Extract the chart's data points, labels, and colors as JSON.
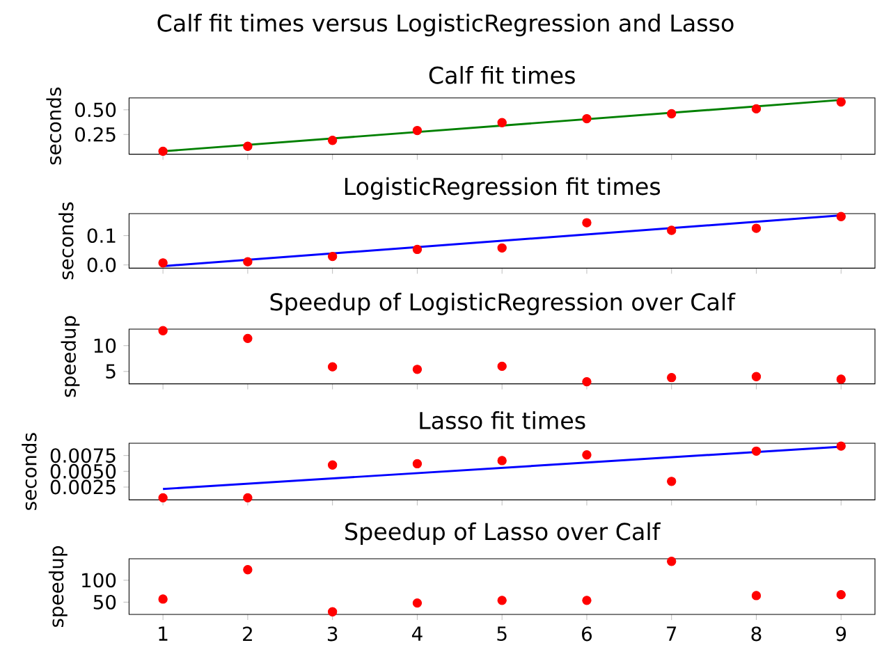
{
  "chart_data": [
    {
      "type": "scatter",
      "title": "Calf fit times",
      "ylabel": "seconds",
      "annotations": [
        "Calf fit times versus LogisticRegression and Lasso"
      ],
      "tick_labels": "y",
      "xlim": [
        0.6,
        9.4
      ],
      "xticks": [
        1,
        2,
        3,
        4,
        5,
        6,
        7,
        8,
        9
      ],
      "ylim": [
        0.05,
        0.62
      ],
      "yticks": [
        {
          "value": 0.25,
          "label": "0.25"
        },
        {
          "value": 0.5,
          "label": "0.50"
        }
      ],
      "series": [
        {
          "type": "line",
          "color": "#008000",
          "x": [
            1,
            9
          ],
          "values": [
            0.08,
            0.6
          ],
          "marker": "none"
        },
        {
          "color": "#ff0000",
          "x": [
            1,
            2,
            3,
            4,
            5,
            6,
            7,
            8,
            9
          ],
          "values": [
            0.08,
            0.13,
            0.19,
            0.29,
            0.37,
            0.41,
            0.46,
            0.51,
            0.58
          ],
          "marker": "circle"
        }
      ]
    },
    {
      "type": "scatter",
      "title": "LogisticRegression fit times",
      "ylabel": "seconds",
      "tick_labels": "y",
      "xlim": [
        0.6,
        9.4
      ],
      "xticks": [
        1,
        2,
        3,
        4,
        5,
        6,
        7,
        8,
        9
      ],
      "ylim": [
        -0.011,
        0.175
      ],
      "yticks": [
        {
          "value": 0,
          "label": "0.0"
        },
        {
          "value": 0.1,
          "label": "0.1"
        }
      ],
      "series": [
        {
          "type": "line",
          "color": "#0000ff",
          "x": [
            1,
            9
          ],
          "values": [
            -0.004,
            0.169
          ],
          "marker": "none"
        },
        {
          "color": "#ff0000",
          "x": [
            1,
            2,
            3,
            4,
            5,
            6,
            7,
            8,
            9
          ],
          "values": [
            0.007,
            0.011,
            0.029,
            0.053,
            0.058,
            0.144,
            0.118,
            0.125,
            0.165
          ],
          "marker": "circle"
        }
      ]
    },
    {
      "type": "scatter",
      "title": "Speedup of LogisticRegression over Calf",
      "ylabel": "speedup",
      "tick_labels": "y",
      "xlim": [
        0.6,
        9.4
      ],
      "xticks": [
        1,
        2,
        3,
        4,
        5,
        6,
        7,
        8,
        9
      ],
      "ylim": [
        2.6,
        13.2
      ],
      "yticks": [
        5,
        10
      ],
      "series": [
        {
          "color": "#ff0000",
          "x": [
            1,
            2,
            3,
            4,
            5,
            6,
            7,
            8,
            9
          ],
          "values": [
            12.9,
            11.4,
            5.9,
            5.4,
            6.0,
            3.0,
            3.8,
            4.0,
            3.5
          ],
          "marker": "circle"
        }
      ]
    },
    {
      "type": "scatter",
      "title": "Lasso fit times",
      "ylabel": "seconds",
      "tick_labels": "y",
      "xlim": [
        0.6,
        9.4
      ],
      "xticks": [
        1,
        2,
        3,
        4,
        5,
        6,
        7,
        8,
        9
      ],
      "ylim": [
        0.00047,
        0.00945
      ],
      "yticks": [
        {
          "value": 0.0025,
          "label": "0.0025"
        },
        {
          "value": 0.005,
          "label": "0.0050"
        },
        {
          "value": 0.0075,
          "label": "0.0075"
        }
      ],
      "series": [
        {
          "type": "line",
          "color": "#0000ff",
          "x": [
            1,
            9
          ],
          "values": [
            0.0022,
            0.0089
          ],
          "marker": "none"
        },
        {
          "color": "#ff0000",
          "x": [
            1,
            2,
            3,
            4,
            5,
            6,
            7,
            8,
            9
          ],
          "values": [
            0.0008,
            0.0008,
            0.006,
            0.0062,
            0.0067,
            0.0076,
            0.0034,
            0.0082,
            0.009
          ],
          "marker": "circle"
        }
      ]
    },
    {
      "type": "scatter",
      "title": "Speedup of Lasso over Calf",
      "ylabel": "speedup",
      "xlim": [
        0.6,
        9.4
      ],
      "xticks": [
        1,
        2,
        3,
        4,
        5,
        6,
        7,
        8,
        9
      ],
      "ylim": [
        22,
        149
      ],
      "yticks": [
        50,
        100
      ],
      "series": [
        {
          "color": "#ff0000",
          "x": [
            1,
            2,
            3,
            4,
            5,
            6,
            7,
            8,
            9
          ],
          "values": [
            57,
            124,
            28,
            48,
            54,
            54,
            143,
            65,
            67
          ],
          "marker": "circle"
        }
      ]
    }
  ]
}
